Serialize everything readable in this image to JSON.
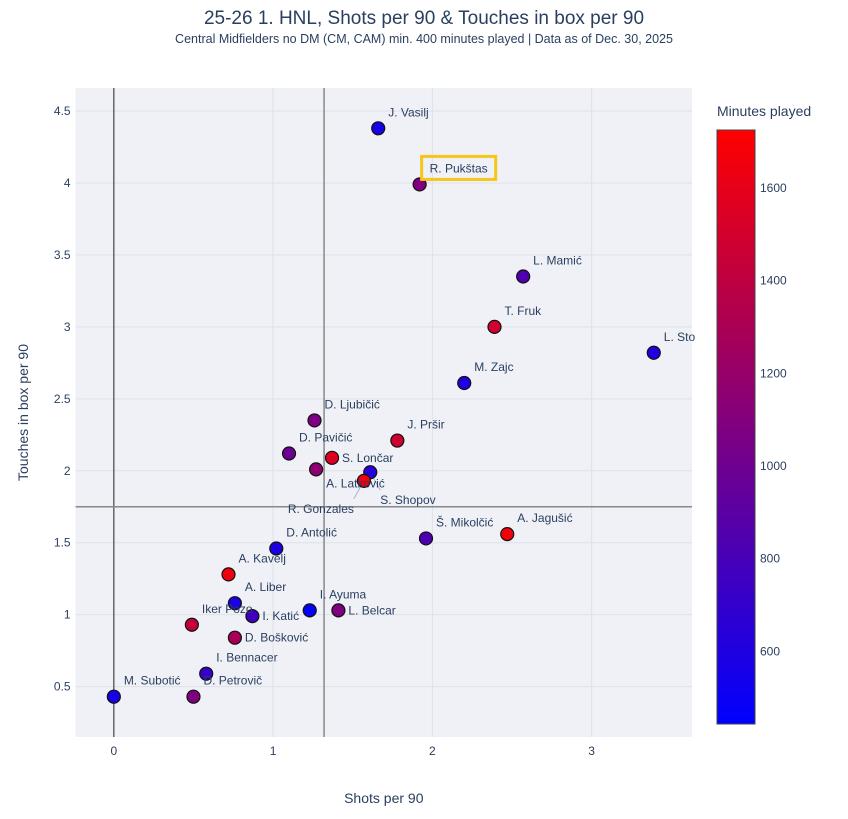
{
  "chart_data": {
    "type": "scatter",
    "title": "25-26 1. HNL, Shots per 90 & Touches in box per 90",
    "subtitle": "Central Midfielders no DM (CM, CAM) min. 400 minutes played | Data as of Dec. 30, 2025",
    "xlabel": "Shots per 90",
    "ylabel": "Touches in box per 90",
    "xlim": [
      -0.24,
      3.63
    ],
    "ylim": [
      0.15,
      4.66
    ],
    "xticks": [
      0,
      1,
      2,
      3
    ],
    "yticks": [
      0.5,
      1,
      1.5,
      2,
      2.5,
      3,
      3.5,
      4,
      4.5
    ],
    "grid": true,
    "reference_lines": {
      "x": 1.32,
      "y": 1.75
    },
    "highlight": "R. Pukštas",
    "colorbar": {
      "title": "Minutes played",
      "range": [
        443,
        1725
      ],
      "ticks": [
        600,
        800,
        1000,
        1200,
        1400,
        1600
      ],
      "low_color": "#0000ff",
      "high_color": "#ff0000",
      "placement": "right"
    },
    "points": [
      {
        "name": "J. Vasilj",
        "x": 1.66,
        "y": 4.38,
        "minutes": 560
      },
      {
        "name": "R. Pukštas",
        "x": 1.92,
        "y": 3.99,
        "minutes": 1090
      },
      {
        "name": "L. Mamić",
        "x": 2.57,
        "y": 3.35,
        "minutes": 840
      },
      {
        "name": "T. Fruk",
        "x": 2.39,
        "y": 3.0,
        "minutes": 1490
      },
      {
        "name": "L. Sto",
        "x": 3.39,
        "y": 2.82,
        "minutes": 600
      },
      {
        "name": "M. Zajc",
        "x": 2.2,
        "y": 2.61,
        "minutes": 590
      },
      {
        "name": "D. Ljubičić",
        "x": 1.26,
        "y": 2.35,
        "minutes": 1070
      },
      {
        "name": "J. Pršir",
        "x": 1.78,
        "y": 2.21,
        "minutes": 1480
      },
      {
        "name": "D. Pavičić",
        "x": 1.1,
        "y": 2.12,
        "minutes": 980
      },
      {
        "name": "S. Lončar",
        "x": 1.37,
        "y": 2.09,
        "minutes": 1560
      },
      {
        "name": "A. Latković",
        "x": 1.27,
        "y": 2.01,
        "minutes": 1150
      },
      {
        "name": "S. Shopov",
        "x": 1.61,
        "y": 1.99,
        "minutes": 620
      },
      {
        "name": "R. Gonzales",
        "x": 1.57,
        "y": 1.93,
        "minutes": 1660
      },
      {
        "name": "D. Antolić",
        "x": 1.02,
        "y": 1.46,
        "minutes": 580
      },
      {
        "name": "Š. Mikolčić",
        "x": 1.96,
        "y": 1.53,
        "minutes": 830
      },
      {
        "name": "A. Jagušić",
        "x": 2.47,
        "y": 1.56,
        "minutes": 1670
      },
      {
        "name": "A. Kavelj",
        "x": 0.72,
        "y": 1.28,
        "minutes": 1660
      },
      {
        "name": "A. Liber",
        "x": 0.76,
        "y": 1.08,
        "minutes": 580
      },
      {
        "name": "I. Katić",
        "x": 0.87,
        "y": 0.99,
        "minutes": 760
      },
      {
        "name": "I. Ayuma",
        "x": 1.23,
        "y": 1.03,
        "minutes": 470
      },
      {
        "name": "L. Belcar",
        "x": 1.41,
        "y": 1.03,
        "minutes": 1090
      },
      {
        "name": "Iker Pozo",
        "x": 0.49,
        "y": 0.93,
        "minutes": 1420
      },
      {
        "name": "D. Bošković",
        "x": 0.76,
        "y": 0.84,
        "minutes": 1290
      },
      {
        "name": "I. Bennacer",
        "x": 0.58,
        "y": 0.59,
        "minutes": 720
      },
      {
        "name": "M. Subotić",
        "x": 0.0,
        "y": 0.43,
        "minutes": 560
      },
      {
        "name": "D. Petrovič",
        "x": 0.5,
        "y": 0.43,
        "minutes": 1080
      }
    ]
  },
  "colors": {
    "plot_bg": "#e5ecf6",
    "grid": "#ffffff",
    "ref_line": "#888888",
    "highlight_box": "#f5c518",
    "text": "#2a3f5f"
  }
}
